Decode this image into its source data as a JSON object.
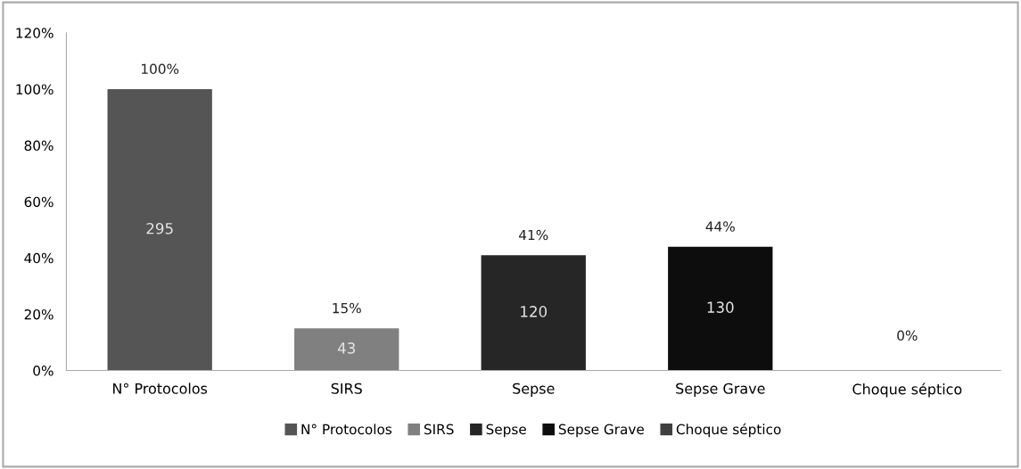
{
  "chart_data": {
    "type": "bar",
    "categories": [
      "N° Protocolos",
      "SIRS",
      "Sepse",
      "Sepse Grave",
      "Choque séptico"
    ],
    "series": [
      {
        "name": "N° Protocolos",
        "color": "#555555",
        "values": [
          100,
          null,
          null,
          null,
          null
        ],
        "value_labels": [
          "100%",
          null,
          null,
          null,
          null
        ]
      },
      {
        "name": "SIRS",
        "color": "#808080",
        "values": [
          null,
          15,
          null,
          null,
          null
        ],
        "value_labels": [
          null,
          "15%",
          null,
          null,
          null
        ]
      },
      {
        "name": "Sepse",
        "color": "#262626",
        "values": [
          null,
          null,
          41,
          null,
          null
        ],
        "value_labels": [
          null,
          null,
          "41%",
          null,
          null
        ]
      },
      {
        "name": "Sepse Grave",
        "color": "#0d0d0d",
        "values": [
          null,
          null,
          null,
          44,
          null
        ],
        "value_labels": [
          null,
          null,
          null,
          "44%",
          null
        ]
      },
      {
        "name": "Choque séptico",
        "color": "#404040",
        "values": [
          null,
          null,
          null,
          null,
          0
        ],
        "value_labels": [
          null,
          null,
          null,
          null,
          "0%"
        ]
      }
    ],
    "ylim": [
      0,
      120
    ],
    "yticks": [
      {
        "value": 0,
        "label": "0%"
      },
      {
        "value": 20,
        "label": "20%"
      },
      {
        "value": 40,
        "label": "40%"
      },
      {
        "value": 60,
        "label": "60%"
      },
      {
        "value": 80,
        "label": "80%"
      },
      {
        "value": 100,
        "label": "100%"
      },
      {
        "value": 120,
        "label": "120%"
      }
    ],
    "annotations": [
      "295",
      "43",
      "120",
      "130"
    ],
    "grid": false,
    "legend": "bottom"
  }
}
